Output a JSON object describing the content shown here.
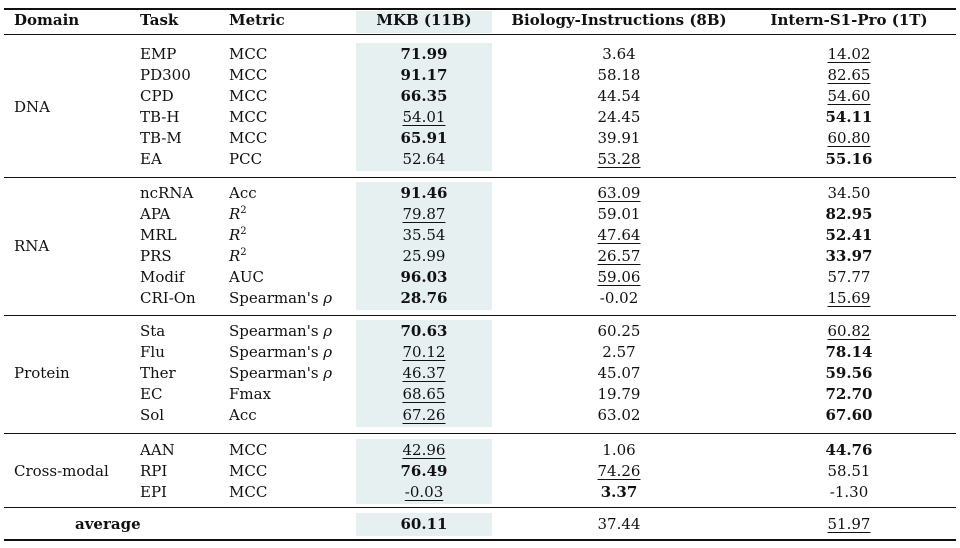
{
  "headers": [
    "Domain",
    "Task",
    "Metric",
    "MKB (11B)",
    "Biology-Instructions (8B)",
    "Intern-S1-Pro (1T)"
  ],
  "groups": [
    {
      "domain": "DNA",
      "rows": [
        {
          "task": "EMP",
          "metric": "MCC",
          "mkb": "71.99",
          "mkb_style": "bold",
          "bio": "3.64",
          "bio_style": "",
          "intern": "14.02",
          "intern_style": "underline"
        },
        {
          "task": "PD300",
          "metric": "MCC",
          "mkb": "91.17",
          "mkb_style": "bold",
          "bio": "58.18",
          "bio_style": "",
          "intern": "82.65",
          "intern_style": "underline"
        },
        {
          "task": "CPD",
          "metric": "MCC",
          "mkb": "66.35",
          "mkb_style": "bold",
          "bio": "44.54",
          "bio_style": "",
          "intern": "54.60",
          "intern_style": "underline"
        },
        {
          "task": "TB-H",
          "metric": "MCC",
          "mkb": "54.01",
          "mkb_style": "underline",
          "bio": "24.45",
          "bio_style": "",
          "intern": "54.11",
          "intern_style": "bold"
        },
        {
          "task": "TB-M",
          "metric": "MCC",
          "mkb": "65.91",
          "mkb_style": "bold",
          "bio": "39.91",
          "bio_style": "",
          "intern": "60.80",
          "intern_style": "underline"
        },
        {
          "task": "EA",
          "metric": "PCC",
          "mkb": "52.64",
          "mkb_style": "",
          "bio": "53.28",
          "bio_style": "underline",
          "intern": "55.16",
          "intern_style": "bold"
        }
      ]
    },
    {
      "domain": "RNA",
      "rows": [
        {
          "task": "ncRNA",
          "metric": "Acc",
          "mkb": "91.46",
          "mkb_style": "bold",
          "bio": "63.09",
          "bio_style": "underline",
          "intern": "34.50",
          "intern_style": ""
        },
        {
          "task": "APA",
          "metric": "R2",
          "mkb": "79.87",
          "mkb_style": "underline",
          "bio": "59.01",
          "bio_style": "",
          "intern": "82.95",
          "intern_style": "bold"
        },
        {
          "task": "MRL",
          "metric": "R2",
          "mkb": "35.54",
          "mkb_style": "",
          "bio": "47.64",
          "bio_style": "underline",
          "intern": "52.41",
          "intern_style": "bold"
        },
        {
          "task": "PRS",
          "metric": "R2",
          "mkb": "25.99",
          "mkb_style": "",
          "bio": "26.57",
          "bio_style": "underline",
          "intern": "33.97",
          "intern_style": "bold"
        },
        {
          "task": "Modif",
          "metric": "AUC",
          "mkb": "96.03",
          "mkb_style": "bold",
          "bio": "59.06",
          "bio_style": "underline",
          "intern": "57.77",
          "intern_style": ""
        },
        {
          "task": "CRI-On",
          "metric": "Spearman's ρ",
          "mkb": "28.76",
          "mkb_style": "bold",
          "bio": "-0.02",
          "bio_style": "",
          "intern": "15.69",
          "intern_style": "underline"
        }
      ]
    },
    {
      "domain": "Protein",
      "rows": [
        {
          "task": "Sta",
          "metric": "Spearman's ρ",
          "mkb": "70.63",
          "mkb_style": "bold",
          "bio": "60.25",
          "bio_style": "",
          "intern": "60.82",
          "intern_style": "underline"
        },
        {
          "task": "Flu",
          "metric": "Spearman's ρ",
          "mkb": "70.12",
          "mkb_style": "underline",
          "bio": "2.57",
          "bio_style": "",
          "intern": "78.14",
          "intern_style": "bold"
        },
        {
          "task": "Ther",
          "metric": "Spearman's ρ",
          "mkb": "46.37",
          "mkb_style": "underline",
          "bio": "45.07",
          "bio_style": "",
          "intern": "59.56",
          "intern_style": "bold"
        },
        {
          "task": "EC",
          "metric": "Fmax",
          "mkb": "68.65",
          "mkb_style": "underline",
          "bio": "19.79",
          "bio_style": "",
          "intern": "72.70",
          "intern_style": "bold"
        },
        {
          "task": "Sol",
          "metric": "Acc",
          "mkb": "67.26",
          "mkb_style": "underline",
          "bio": "63.02",
          "bio_style": "",
          "intern": "67.60",
          "intern_style": "bold"
        }
      ]
    },
    {
      "domain": "Cross-modal",
      "rows": [
        {
          "task": "AAN",
          "metric": "MCC",
          "mkb": "42.96",
          "mkb_style": "underline",
          "bio": "1.06",
          "bio_style": "",
          "intern": "44.76",
          "intern_style": "bold"
        },
        {
          "task": "RPI",
          "metric": "MCC",
          "mkb": "76.49",
          "mkb_style": "bold",
          "bio": "74.26",
          "bio_style": "underline",
          "intern": "58.51",
          "intern_style": ""
        },
        {
          "task": "EPI",
          "metric": "MCC",
          "mkb": "-0.03",
          "mkb_style": "underline",
          "bio": "3.37",
          "bio_style": "bold",
          "intern": "-1.30",
          "intern_style": ""
        }
      ]
    }
  ],
  "average": {
    "label": "average",
    "mkb": "60.11",
    "mkb_style": "bold",
    "bio": "37.44",
    "bio_style": "",
    "intern": "51.97",
    "intern_style": "underline"
  }
}
